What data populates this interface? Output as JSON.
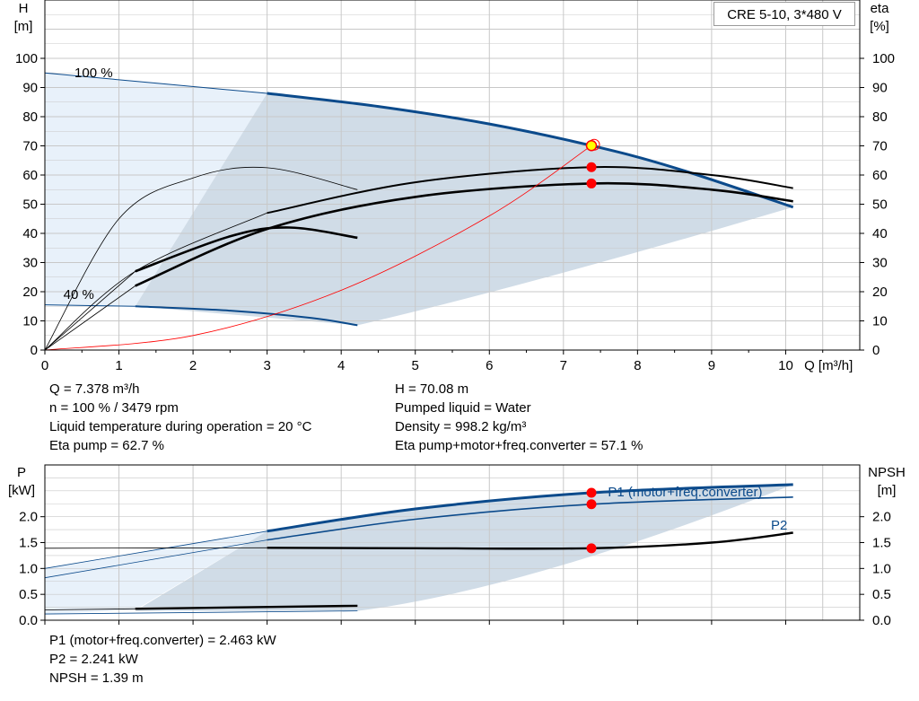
{
  "pump_label": "CRE 5-10, 3*480 V",
  "colors": {
    "pump_curve": "#0b4a8b",
    "black_curve": "#000000",
    "system_curve": "#ff0000",
    "area_fill": "#d0dce7",
    "light_fill": "#e8f1fa",
    "grid": "#c8c8c8",
    "duty_point": "#ff0000",
    "duty_point_main": "#ffff00"
  },
  "info_top": {
    "q": "Q = 7.378 m³/h",
    "n": "n = 100 % / 3479 rpm",
    "temp": "Liquid temperature during operation = 20 °C",
    "eta_pump": "Eta pump = 62.7 %",
    "h": "H = 70.08 m",
    "liquid": "Pumped liquid = Water",
    "density": "Density = 998.2 kg/m³",
    "eta_total": "Eta pump+motor+freq.converter = 57.1 %"
  },
  "info_bottom": {
    "p1": "P1 (motor+freq.converter) = 2.463 kW",
    "p2": "P2 = 2.241 kW",
    "npsh": "NPSH = 1.39 m"
  },
  "chart_data": [
    {
      "type": "line",
      "title": "",
      "x_axis": {
        "label": "Q [m³/h]",
        "range": [
          0,
          11
        ],
        "ticks": [
          0,
          1,
          2,
          3,
          4,
          5,
          6,
          7,
          8,
          9,
          10
        ]
      },
      "y_left": {
        "label": [
          "H",
          "[m]"
        ],
        "range": [
          0,
          120
        ],
        "ticks": [
          0,
          10,
          20,
          30,
          40,
          50,
          60,
          70,
          80,
          90,
          100
        ]
      },
      "y_right": {
        "label": [
          "eta",
          "[%]"
        ],
        "range": [
          0,
          120
        ],
        "ticks": [
          0,
          10,
          20,
          30,
          40,
          50,
          60,
          70,
          80,
          90,
          100
        ]
      },
      "grid": true,
      "annotations": [
        "100 %",
        "40 %"
      ],
      "series": [
        {
          "kind": "H-100",
          "x": [
            0,
            3.0,
            4.5,
            6.0,
            7.378,
            8.5,
            10.1
          ],
          "y": [
            95,
            88,
            83.5,
            77.5,
            70.1,
            62.5,
            49
          ]
        },
        {
          "kind": "H-40",
          "x": [
            0,
            1.22,
            2.5,
            3.6,
            4.22
          ],
          "y": [
            15.5,
            15,
            13.5,
            11,
            8.5
          ]
        },
        {
          "kind": "eta-pump",
          "x": [
            0,
            1.22,
            3.0,
            5.0,
            7.378,
            9.0,
            10.1
          ],
          "y": [
            0,
            27,
            47,
            57.5,
            62.7,
            60,
            55.5
          ]
        },
        {
          "kind": "eta-total",
          "x": [
            0,
            1.22,
            3.0,
            5.0,
            7.378,
            9.0,
            10.1
          ],
          "y": [
            0,
            22,
            41.5,
            52.5,
            57.1,
            55,
            51
          ]
        },
        {
          "kind": "eta-low-pump",
          "x": [
            0,
            1.0,
            2.0,
            3.0,
            4.22
          ],
          "y": [
            0,
            45,
            59,
            62.5,
            55
          ]
        },
        {
          "kind": "eta-low-total",
          "x": [
            0,
            1.22,
            2.5,
            3.3,
            4.22
          ],
          "y": [
            0,
            27,
            39,
            42,
            38.5
          ]
        },
        {
          "kind": "system",
          "x": [
            0,
            2,
            4,
            6,
            7.4
          ],
          "y": [
            0,
            5,
            20.5,
            46,
            70.5
          ]
        }
      ],
      "duty_points": [
        {
          "x": 7.378,
          "y": 70.08
        },
        {
          "x": 7.378,
          "y": 62.7
        },
        {
          "x": 7.378,
          "y": 57.1
        }
      ]
    },
    {
      "type": "line",
      "title": "",
      "x_axis": {
        "range": [
          0,
          11
        ]
      },
      "y_left": {
        "label": [
          "P",
          "[kW]"
        ],
        "range": [
          0,
          3.0
        ],
        "ticks": [
          0.0,
          0.5,
          1.0,
          1.5,
          2.0
        ]
      },
      "y_right": {
        "label": [
          "NPSH",
          "[m]"
        ],
        "range": [
          0,
          3.0
        ],
        "ticks": [
          0.0,
          0.5,
          1.0,
          1.5,
          2.0
        ]
      },
      "grid": true,
      "series": [
        {
          "name": "P1 (motor+freq.converter)",
          "x": [
            0,
            3.0,
            5.0,
            7.378,
            10.1
          ],
          "y": [
            1.0,
            1.72,
            2.15,
            2.463,
            2.62
          ]
        },
        {
          "name": "P2",
          "x": [
            0,
            3.0,
            5.0,
            7.378,
            10.1
          ],
          "y": [
            0.82,
            1.55,
            1.95,
            2.241,
            2.38
          ]
        },
        {
          "kind": "NPSH",
          "x": [
            0,
            3.0,
            5.0,
            7.378,
            9.0,
            10.1
          ],
          "y": [
            1.39,
            1.4,
            1.39,
            1.39,
            1.5,
            1.69
          ]
        },
        {
          "kind": "P-low",
          "x": [
            0,
            1.22,
            4.22
          ],
          "y": [
            0.2,
            0.22,
            0.28
          ]
        }
      ],
      "duty_points": [
        {
          "x": 7.378,
          "y": 2.463
        },
        {
          "x": 7.378,
          "y": 2.241
        },
        {
          "x": 7.378,
          "y": 1.39
        }
      ]
    }
  ]
}
